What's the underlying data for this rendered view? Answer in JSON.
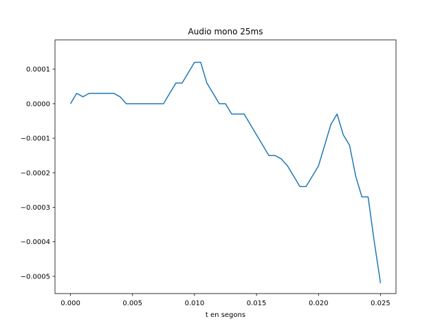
{
  "chart_data": {
    "type": "line",
    "title": "Audio mono 25ms",
    "xlabel": "t en segons",
    "ylabel": "",
    "xlim": [
      -0.00125,
      0.02625
    ],
    "ylim": [
      -0.00055,
      0.000185
    ],
    "grid": false,
    "color": "#1f77b4",
    "x_ticks": [
      {
        "value": 0.0,
        "label": "0.000"
      },
      {
        "value": 0.005,
        "label": "0.005"
      },
      {
        "value": 0.01,
        "label": "0.010"
      },
      {
        "value": 0.015,
        "label": "0.015"
      },
      {
        "value": 0.02,
        "label": "0.020"
      },
      {
        "value": 0.025,
        "label": "0.025"
      }
    ],
    "y_ticks": [
      {
        "value": 0.0001,
        "label": "0.0001"
      },
      {
        "value": 0.0,
        "label": "0.0000"
      },
      {
        "value": -0.0001,
        "label": "−0.0001"
      },
      {
        "value": -0.0002,
        "label": "−0.0002"
      },
      {
        "value": -0.0003,
        "label": "−0.0003"
      },
      {
        "value": -0.0004,
        "label": "−0.0004"
      },
      {
        "value": -0.0005,
        "label": "−0.0005"
      }
    ],
    "series": [
      {
        "x": [
          0.0,
          0.0005,
          0.001,
          0.0015,
          0.002,
          0.0025,
          0.003,
          0.0035,
          0.004,
          0.0045,
          0.005,
          0.0055,
          0.006,
          0.0065,
          0.007,
          0.0075,
          0.008,
          0.0085,
          0.009,
          0.0095,
          0.01,
          0.0105,
          0.011,
          0.0115,
          0.012,
          0.0125,
          0.013,
          0.0135,
          0.014,
          0.0145,
          0.015,
          0.0155,
          0.016,
          0.0165,
          0.017,
          0.0175,
          0.018,
          0.0185,
          0.019,
          0.0195,
          0.02,
          0.0205,
          0.021,
          0.0215,
          0.022,
          0.0225,
          0.023,
          0.0235,
          0.024,
          0.0245,
          0.025
        ],
        "y": [
          0.0,
          3e-05,
          2e-05,
          3e-05,
          3e-05,
          3e-05,
          3e-05,
          3e-05,
          2e-05,
          0.0,
          0.0,
          0.0,
          0.0,
          0.0,
          0.0,
          0.0,
          3e-05,
          6e-05,
          6e-05,
          9e-05,
          0.00012,
          0.00012,
          6e-05,
          3e-05,
          0.0,
          0.0,
          -3e-05,
          -3e-05,
          -3e-05,
          -6e-05,
          -9e-05,
          -0.00012,
          -0.00015,
          -0.00015,
          -0.00016,
          -0.00018,
          -0.00021,
          -0.00024,
          -0.00024,
          -0.00021,
          -0.00018,
          -0.00012,
          -6e-05,
          -3e-05,
          -9e-05,
          -0.00012,
          -0.00021,
          -0.00027,
          -0.00027,
          -0.0004,
          -0.00052
        ]
      }
    ]
  }
}
